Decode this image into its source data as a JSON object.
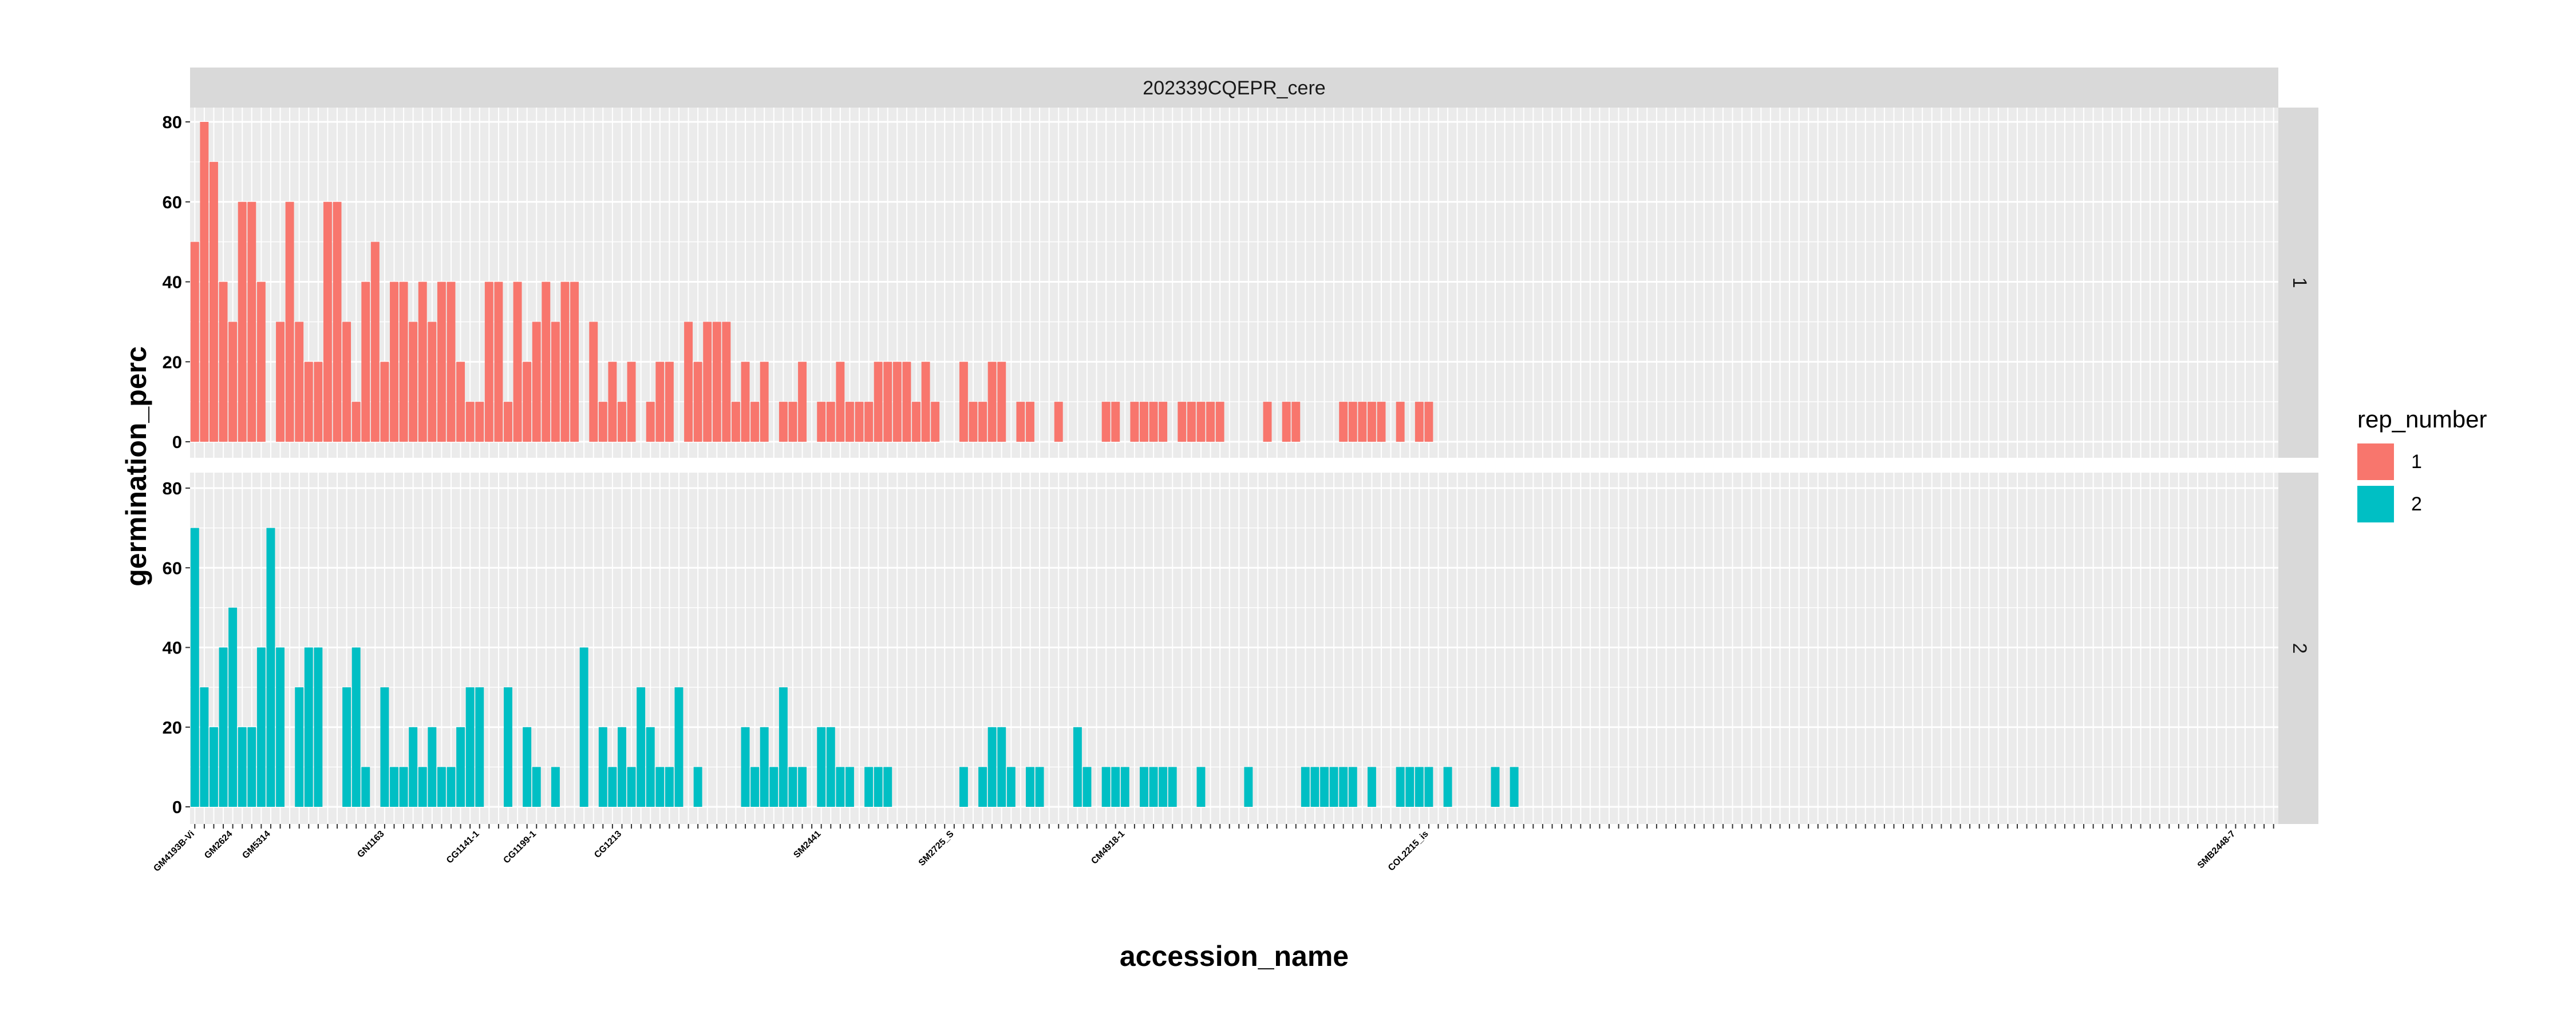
{
  "chart_data": {
    "type": "bar",
    "facet_title": "202339CQEPR_cere",
    "xlabel": "accession_name",
    "ylabel": "germination_perc",
    "ylim": [
      0,
      84
    ],
    "y_ticks": [
      0,
      20,
      40,
      60,
      80
    ],
    "category_count": 220,
    "legend": {
      "title": "rep_number",
      "position": "right"
    },
    "grid": true,
    "series": [
      {
        "name": "1",
        "color": "#F8766D",
        "panel_label": "1",
        "values": [
          50,
          80,
          70,
          40,
          30,
          60,
          60,
          40,
          0,
          30,
          60,
          30,
          20,
          20,
          60,
          60,
          30,
          10,
          40,
          50,
          20,
          40,
          40,
          30,
          40,
          30,
          40,
          40,
          20,
          10,
          10,
          40,
          40,
          10,
          40,
          20,
          30,
          40,
          30,
          40,
          40,
          0,
          30,
          10,
          20,
          10,
          20,
          0,
          10,
          20,
          20,
          0,
          30,
          20,
          30,
          30,
          30,
          10,
          20,
          10,
          20,
          0,
          10,
          10,
          20,
          0,
          10,
          10,
          20,
          10,
          10,
          10,
          20,
          20,
          20,
          20,
          10,
          20,
          10,
          0,
          0,
          20,
          10,
          10,
          20,
          20,
          0,
          10,
          10,
          0,
          0,
          10,
          0,
          0,
          0,
          0,
          10,
          10,
          0,
          10,
          10,
          10,
          10,
          0,
          10,
          10,
          10,
          10,
          10,
          0,
          0,
          0,
          0,
          10,
          0,
          10,
          10,
          0,
          0,
          0,
          0,
          10,
          10,
          10,
          10,
          10,
          0,
          10,
          0,
          10,
          10,
          0,
          0,
          0,
          0,
          0,
          0,
          0,
          0,
          0,
          0,
          0,
          0,
          0,
          0,
          0,
          0,
          0,
          0,
          0,
          0,
          0,
          0,
          0,
          0,
          0,
          0,
          0,
          0,
          0,
          0,
          0,
          0,
          0,
          0,
          0,
          0,
          0,
          0,
          0,
          0,
          0,
          0,
          0,
          0,
          0,
          0,
          0,
          0,
          0,
          0,
          0,
          0,
          0,
          0,
          0,
          0,
          0,
          0,
          0,
          0,
          0,
          0,
          0,
          0,
          0,
          0,
          0,
          0,
          0,
          0,
          0,
          0,
          0,
          0,
          0,
          0,
          0,
          0,
          0,
          0,
          0,
          0,
          0,
          0,
          0,
          0,
          0,
          0,
          0
        ]
      },
      {
        "name": "2",
        "color": "#00BFC4",
        "panel_label": "2",
        "values": [
          70,
          30,
          20,
          40,
          50,
          20,
          20,
          40,
          70,
          40,
          0,
          30,
          40,
          40,
          0,
          0,
          30,
          40,
          10,
          0,
          30,
          10,
          10,
          20,
          10,
          20,
          10,
          10,
          20,
          30,
          30,
          0,
          0,
          30,
          0,
          20,
          10,
          0,
          10,
          0,
          0,
          40,
          0,
          20,
          10,
          20,
          10,
          30,
          20,
          10,
          10,
          30,
          0,
          10,
          0,
          0,
          0,
          0,
          20,
          10,
          20,
          10,
          30,
          10,
          10,
          0,
          20,
          20,
          10,
          10,
          0,
          10,
          10,
          10,
          0,
          0,
          0,
          0,
          0,
          0,
          0,
          10,
          0,
          10,
          20,
          20,
          10,
          0,
          10,
          10,
          0,
          0,
          0,
          20,
          10,
          0,
          10,
          10,
          10,
          0,
          10,
          10,
          10,
          10,
          0,
          0,
          10,
          0,
          0,
          0,
          0,
          10,
          0,
          0,
          0,
          0,
          0,
          10,
          10,
          10,
          10,
          10,
          10,
          0,
          10,
          0,
          0,
          10,
          10,
          10,
          10,
          0,
          10,
          0,
          0,
          0,
          0,
          10,
          0,
          10,
          0,
          0,
          0,
          0,
          0,
          0,
          0,
          0,
          0,
          0,
          0,
          0,
          0,
          0,
          0,
          0,
          0,
          0,
          0,
          0,
          0,
          0,
          0,
          0,
          0,
          0,
          0,
          0,
          0,
          0,
          0,
          0,
          0,
          0,
          0,
          0,
          0,
          0,
          0,
          0,
          0,
          0,
          0,
          0,
          0,
          0,
          0,
          0,
          0,
          0,
          0,
          0,
          0,
          0,
          0,
          0,
          0,
          0,
          0,
          0,
          0,
          0,
          0,
          0,
          0,
          0,
          0,
          0,
          0,
          0,
          0,
          0,
          0,
          0,
          0,
          0,
          0,
          0,
          0,
          0
        ]
      }
    ],
    "tick_labels": [
      {
        "index": 0,
        "text": "GM4193B-Vi"
      },
      {
        "index": 4,
        "text": "GM2624"
      },
      {
        "index": 8,
        "text": "GM5314"
      },
      {
        "index": 20,
        "text": "GN1163"
      },
      {
        "index": 30,
        "text": "CG1141-1"
      },
      {
        "index": 36,
        "text": "CG1199-1"
      },
      {
        "index": 45,
        "text": "CG1213"
      },
      {
        "index": 66,
        "text": "SM2441"
      },
      {
        "index": 80,
        "text": "SM2725_S"
      },
      {
        "index": 98,
        "text": "CM4918-1"
      },
      {
        "index": 130,
        "text": "COL2215_is"
      },
      {
        "index": 215,
        "text": "SMB2448-7"
      }
    ]
  }
}
